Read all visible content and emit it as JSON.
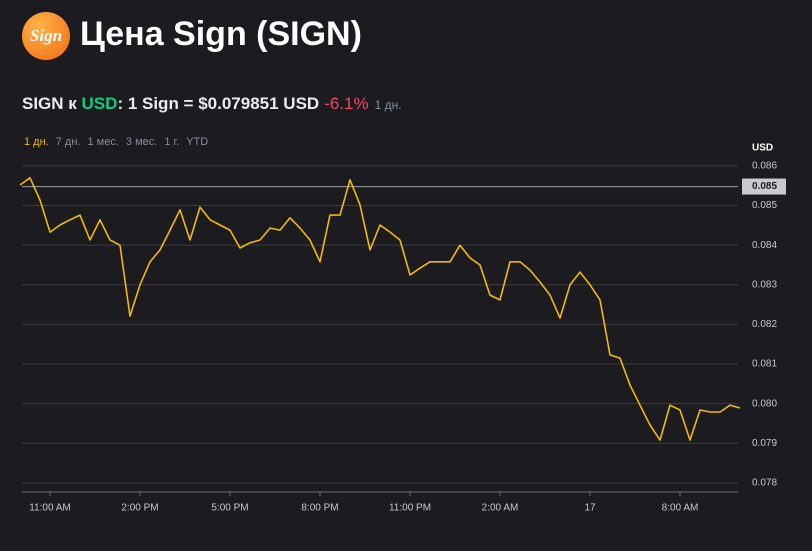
{
  "header": {
    "logo": "Sign",
    "title": "Цена Sign (SIGN)"
  },
  "pair": {
    "base": "SIGN к",
    "quote": "USD",
    "rate": ": 1 Sign = $0.079851 USD",
    "change": "-6.1%",
    "period": "1 дн."
  },
  "tabs": [
    "1 дн.",
    "7 дн.",
    "1 мес.",
    "3 мес.",
    "1 г.",
    "YTD"
  ],
  "chart_data": {
    "type": "line",
    "color": "#f0b90b",
    "y_unit": "USD",
    "categories": [
      null,
      null,
      null,
      "11:00 AM",
      null,
      null,
      null,
      null,
      null,
      null,
      null,
      null,
      "2:00 PM",
      null,
      null,
      null,
      null,
      null,
      null,
      null,
      null,
      "5:00 PM",
      null,
      null,
      null,
      null,
      null,
      null,
      null,
      null,
      "8:00 PM",
      null,
      null,
      null,
      null,
      null,
      null,
      null,
      null,
      "11:00 PM",
      null,
      null,
      null,
      null,
      null,
      null,
      null,
      null,
      "2:00 AM",
      null,
      null,
      null,
      null,
      null,
      null,
      null,
      null,
      "17",
      null,
      null,
      null,
      null,
      null,
      null,
      null,
      null,
      "8:00 AM",
      null,
      null,
      null,
      null,
      null,
      null
    ],
    "values": [
      0.08552,
      0.0857,
      0.08514,
      0.08433,
      0.08451,
      0.08464,
      0.08476,
      0.08413,
      0.08464,
      0.08413,
      0.084,
      0.08221,
      0.083,
      0.08358,
      0.08388,
      0.08438,
      0.08489,
      0.08413,
      0.08496,
      0.08464,
      0.08451,
      0.08438,
      0.08393,
      0.08406,
      0.08413,
      0.08443,
      0.08438,
      0.08469,
      0.08443,
      0.08413,
      0.08358,
      0.08476,
      0.08476,
      0.08565,
      0.08502,
      0.08388,
      0.08451,
      0.08433,
      0.08413,
      0.08325,
      0.08342,
      0.08358,
      0.08358,
      0.08358,
      0.084,
      0.08368,
      0.0835,
      0.08274,
      0.08262,
      0.08358,
      0.08358,
      0.08337,
      0.08307,
      0.08274,
      0.08216,
      0.083,
      0.08332,
      0.083,
      0.08262,
      0.08123,
      0.08115,
      0.08047,
      0.07996,
      0.07946,
      0.07908,
      0.07996,
      0.07984,
      0.07908,
      0.07984,
      0.07979,
      0.07979,
      0.07996,
      0.07989
    ],
    "ylim": [
      0.07777,
      0.08615
    ],
    "yticks": [
      0.086,
      0.085,
      0.084,
      0.083,
      0.082,
      0.081,
      {
        "value": 0.08,
        "label": "0.080"
      },
      0.079,
      0.078
    ],
    "reference_line": {
      "value": 0.08548,
      "label": "0.085"
    },
    "grid": true
  }
}
